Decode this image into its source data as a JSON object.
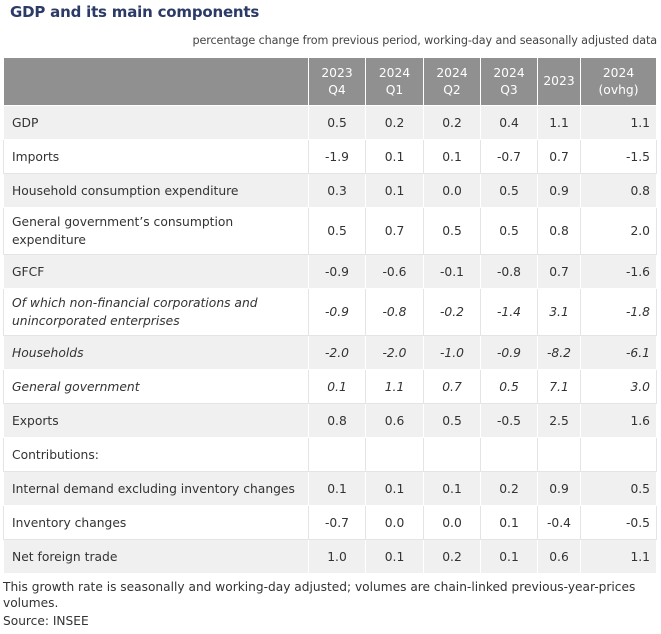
{
  "title": "GDP and its main components",
  "subtitle": "percentage change from previous period, working-day and seasonally adjusted data",
  "columns": [
    {
      "line1": "2023",
      "line2": "Q4"
    },
    {
      "line1": "2024",
      "line2": "Q1"
    },
    {
      "line1": "2024",
      "line2": "Q2"
    },
    {
      "line1": "2024",
      "line2": "Q3"
    },
    {
      "line1": "2023",
      "line2": ""
    },
    {
      "line1": "2024",
      "line2": "(ovhg)"
    }
  ],
  "rows": [
    {
      "label": "GDP",
      "values": [
        "0.5",
        "0.2",
        "0.2",
        "0.4",
        "1.1",
        "1.1"
      ]
    },
    {
      "label": "Imports",
      "values": [
        "-1.9",
        "0.1",
        "0.1",
        "-0.7",
        "0.7",
        "-1.5"
      ]
    },
    {
      "label": "Household consumption expenditure",
      "values": [
        "0.3",
        "0.1",
        "0.0",
        "0.5",
        "0.9",
        "0.8"
      ]
    },
    {
      "label": "General government’s consumption expenditure",
      "values": [
        "0.5",
        "0.7",
        "0.5",
        "0.5",
        "0.8",
        "2.0"
      ]
    },
    {
      "label": "GFCF",
      "values": [
        "-0.9",
        "-0.6",
        "-0.1",
        "-0.8",
        "0.7",
        "-1.6"
      ]
    },
    {
      "label": "Of which non-financial corporations and unincorporated enterprises",
      "values": [
        "-0.9",
        "-0.8",
        "-0.2",
        "-1.4",
        "3.1",
        "-1.8"
      ]
    },
    {
      "label": "Households",
      "values": [
        "-2.0",
        "-2.0",
        "-1.0",
        "-0.9",
        "-8.2",
        "-6.1"
      ]
    },
    {
      "label": "General government",
      "values": [
        "0.1",
        "1.1",
        "0.7",
        "0.5",
        "7.1",
        "3.0"
      ]
    },
    {
      "label": "Exports",
      "values": [
        "0.8",
        "0.6",
        "0.5",
        "-0.5",
        "2.5",
        "1.6"
      ]
    },
    {
      "label": "Contributions:",
      "values": [
        "",
        "",
        "",
        "",
        "",
        ""
      ]
    },
    {
      "label": "Internal demand excluding inventory changes",
      "values": [
        "0.1",
        "0.1",
        "0.1",
        "0.2",
        "0.9",
        "0.5"
      ]
    },
    {
      "label": "Inventory changes",
      "values": [
        "-0.7",
        "0.0",
        "0.0",
        "0.1",
        "-0.4",
        "-0.5"
      ]
    },
    {
      "label": "Net foreign trade",
      "values": [
        "1.0",
        "0.1",
        "0.2",
        "0.1",
        "0.6",
        "1.1"
      ]
    }
  ],
  "note": "This growth rate is seasonally and working-day adjusted; volumes are chain-linked previous-year-prices volumes.",
  "source": "Source: INSEE"
}
